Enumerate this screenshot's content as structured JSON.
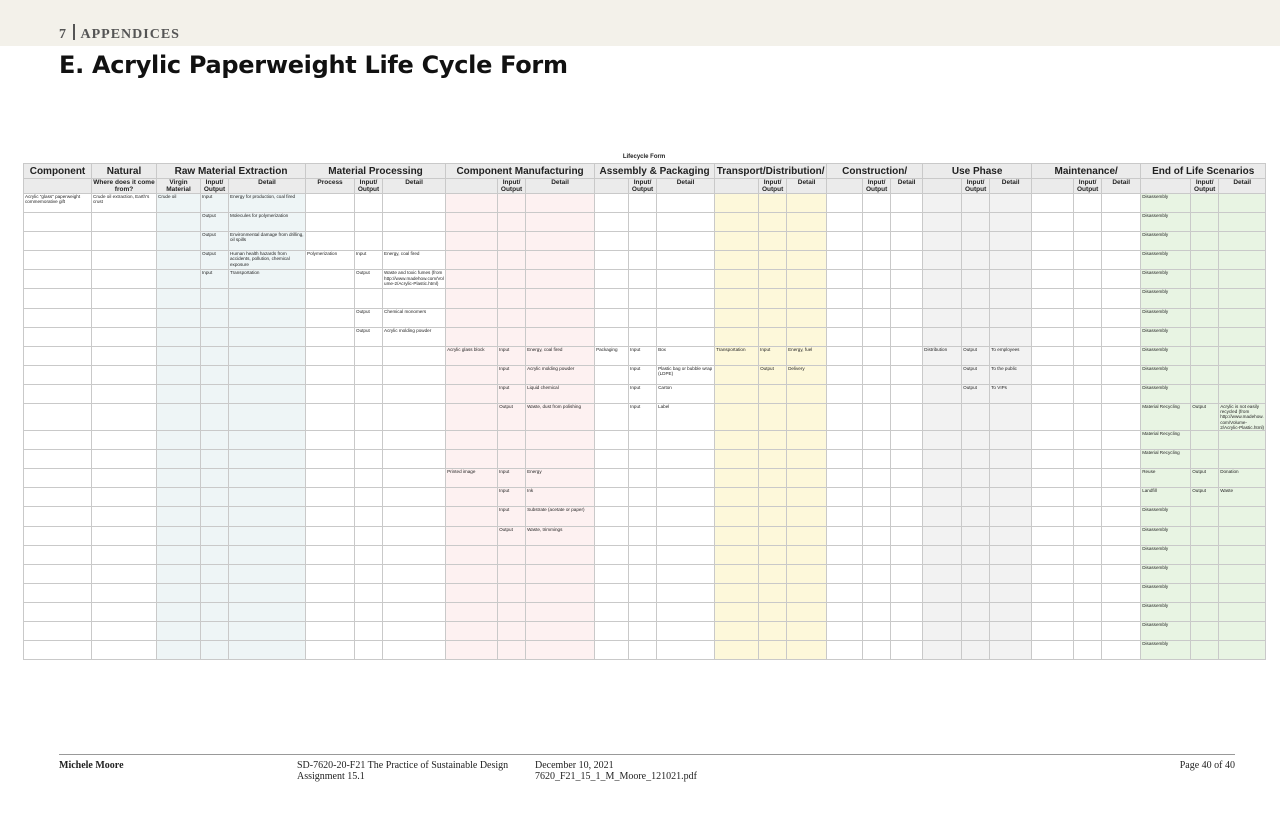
{
  "header": {
    "section_number": "7",
    "section_title": "APPENDICES",
    "title": "E. Acrylic Paperweight Life Cycle Form"
  },
  "table": {
    "caption": "Lifecycle Form",
    "groups": [
      {
        "label": "Component",
        "span": 1
      },
      {
        "label": "Natural",
        "span": 1
      },
      {
        "label": "Raw Material Extraction",
        "span": 3
      },
      {
        "label": "Material Processing",
        "span": 3
      },
      {
        "label": "Component Manufacturing",
        "span": 3
      },
      {
        "label": "Assembly & Packaging",
        "span": 3
      },
      {
        "label": "Transport/Distribution/",
        "span": 3
      },
      {
        "label": "Construction/",
        "span": 3
      },
      {
        "label": "Use Phase",
        "span": 3
      },
      {
        "label": "Maintenance/",
        "span": 3
      },
      {
        "label": "End of Life Scenarios",
        "span": 3
      }
    ],
    "subheaders": [
      null,
      "Where does it come from?",
      "Virgin Material",
      "Input/ Output",
      "Detail",
      "Process",
      "Input/ Output",
      "Detail",
      null,
      "Input/ Output",
      "Detail",
      null,
      "Input/ Output",
      "Detail",
      null,
      "Input/ Output",
      "Detail",
      null,
      "Input/ Output",
      "Detail",
      null,
      "Input/ Output",
      "Detail",
      null,
      "Input/ Output",
      "Detail",
      null,
      "Input/ Output",
      "Detail"
    ],
    "rows": [
      {
        "0": "Acrylic \"glass\" paperweight commemorative gift",
        "1": "Crude oil extraction, Earth's crust",
        "2": "Crude oil",
        "3": "Input",
        "4": "Energy for production, coal fired",
        "26": "Disassembly"
      },
      {
        "3": "Output",
        "4": "Molecules for polymerization",
        "26": "Disassembly"
      },
      {
        "3": "Output",
        "4": "Environmental damage from drilling, oil spills",
        "26": "Disassembly"
      },
      {
        "3": "Output",
        "4": "Human health hazards from accidents, pollution, chemical exposure",
        "5": "Polymerization",
        "6": "Input",
        "7": "Energy, coal fired",
        "26": "Disassembly"
      },
      {
        "3": "Input",
        "4": "Transportation",
        "6": "Output",
        "7": "Waste and toxic fumes (from http://www.madehow.com/Volume-2/Acrylic-Plastic.html)",
        "26": "Disassembly"
      },
      {
        "26": "Disassembly"
      },
      {
        "6": "Output",
        "7": "Chemical monomers",
        "26": "Disassembly"
      },
      {
        "6": "Output",
        "7": "Acrylic molding powder",
        "26": "Disassembly"
      },
      {
        "8": "Acrylic glass block",
        "9": "Input",
        "10": "Energy, coal fired",
        "11": "Packaging",
        "12": "Input",
        "13": "Box",
        "14": "Transportation",
        "15": "Input",
        "16": "Energy, fuel",
        "20": "Distribution",
        "21": "Output",
        "22": "To employees",
        "26": "Disassembly"
      },
      {
        "9": "Input",
        "10": "Acrylic molding powder",
        "12": "Input",
        "13": "Plastic bag or bubble wrap (LDPE)",
        "15": "Output",
        "16": "Delivery",
        "21": "Output",
        "22": "To the public",
        "26": "Disassembly"
      },
      {
        "9": "Input",
        "10": "Liquid chemical",
        "12": "Input",
        "13": "Carton",
        "21": "Output",
        "22": "To VIPs",
        "26": "Disassembly"
      },
      {
        "9": "Output",
        "10": "Waste, dust from polishing",
        "12": "Input",
        "13": "Label",
        "26": "Material Recycling",
        "27": "Output",
        "28": "Acrylic is not easily recycled (from http://www.madehow.com/Volume-2/Acrylic-Plastic.html)"
      },
      {
        "26": "Material Recycling"
      },
      {
        "26": "Material Recycling"
      },
      {
        "8": "Printed image",
        "9": "Input",
        "10": "Energy",
        "26": "Reuse",
        "27": "Output",
        "28": "Donation"
      },
      {
        "9": "Input",
        "10": "Ink",
        "26": "Landfill",
        "27": "Output",
        "28": "Waste"
      },
      {
        "9": "Input",
        "10": "Substrate (acetate or paper)",
        "26": "Disassembly"
      },
      {
        "9": "Output",
        "10": "Waste, trimmings",
        "26": "Disassembly"
      },
      {
        "26": "Disassembly"
      },
      {
        "26": "Disassembly"
      },
      {
        "26": "Disassembly"
      },
      {
        "26": "Disassembly"
      },
      {
        "26": "Disassembly"
      },
      {
        "26": "Disassembly"
      }
    ]
  },
  "footer": {
    "author": "Michele Moore",
    "course": "SD-7620-20-F21 The Practice of Sustainable Design",
    "assignment": "Assignment 15.1",
    "date": "December 10, 2021",
    "file": "7620_F21_15_1_M_Moore_121021.pdf",
    "page": "Page 40 of 40"
  }
}
